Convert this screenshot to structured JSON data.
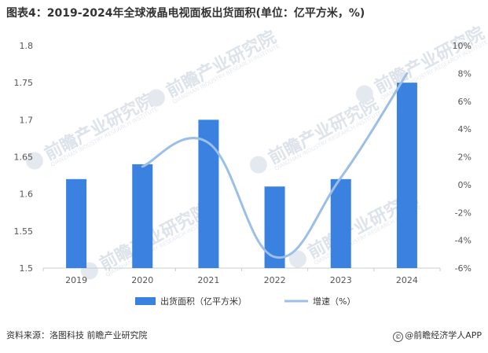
{
  "title": "图表4：2019-2024年全球液晶电视面板出货面积(单位：亿平方米，%)",
  "source": "资料来源：洛图科技 前瞻产业研究院",
  "brand": "@前瞻经济学人APP",
  "brand_icon": "copyright-icon",
  "watermark": {
    "text": "前瞻产业研究院",
    "sub": "QIANZHAN INDUSTRY RESEARCH INSTITUTE"
  },
  "colors": {
    "bar": "#3b82e0",
    "line": "#9bbfe6",
    "axis": "#cccccc",
    "text": "#555555"
  },
  "chart_data": {
    "type": "bar",
    "categories": [
      "2019",
      "2020",
      "2021",
      "2022",
      "2023",
      "2024"
    ],
    "series": [
      {
        "name": "出货面积（亿平方米）",
        "type": "bar",
        "axis": "left",
        "values": [
          1.62,
          1.64,
          1.7,
          1.61,
          1.62,
          1.75
        ]
      },
      {
        "name": "增速（%）",
        "type": "line",
        "axis": "right",
        "smooth": true,
        "values": [
          null,
          1.3,
          3.0,
          -5.2,
          0.5,
          8.0
        ]
      }
    ],
    "y_left": {
      "lim": [
        1.5,
        1.8
      ],
      "ticks": [
        "1.5",
        "1.55",
        "1.6",
        "1.65",
        "1.7",
        "1.75",
        "1.8"
      ]
    },
    "y_right": {
      "lim": [
        -6,
        10
      ],
      "ticks": [
        "-6%",
        "-4%",
        "-2%",
        "0%",
        "2%",
        "4%",
        "6%",
        "8%",
        "10%"
      ]
    },
    "legend_position": "bottom",
    "grid": false
  }
}
